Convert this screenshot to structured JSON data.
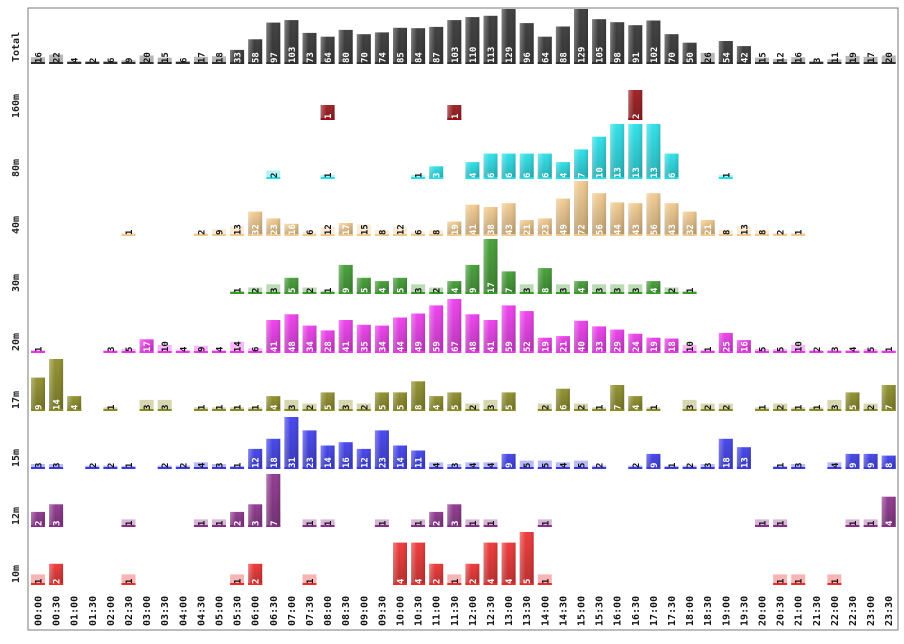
{
  "chart_data": {
    "type": "bar",
    "title": "",
    "xlabel": "",
    "ylabel": "",
    "grid": false,
    "legend": "none",
    "times": [
      "00:00",
      "00:30",
      "01:00",
      "01:30",
      "02:00",
      "02:30",
      "03:00",
      "03:30",
      "04:00",
      "04:30",
      "05:00",
      "05:30",
      "06:00",
      "06:30",
      "07:00",
      "07:30",
      "08:00",
      "08:30",
      "09:00",
      "09:30",
      "10:00",
      "10:30",
      "11:00",
      "11:30",
      "12:00",
      "12:30",
      "13:00",
      "13:30",
      "14:00",
      "14:30",
      "15:00",
      "15:30",
      "16:00",
      "16:30",
      "17:00",
      "17:30",
      "18:00",
      "18:30",
      "19:00",
      "19:30",
      "20:00",
      "20:30",
      "21:00",
      "21:30",
      "22:00",
      "22:30",
      "23:00",
      "23:30"
    ],
    "rows": [
      {
        "name": "Total",
        "color": "#303030",
        "max": 129,
        "values": [
          16,
          22,
          4,
          2,
          6,
          9,
          20,
          15,
          6,
          17,
          18,
          33,
          58,
          97,
          103,
          73,
          64,
          80,
          70,
          74,
          85,
          84,
          87,
          103,
          110,
          113,
          129,
          96,
          64,
          88,
          129,
          105,
          98,
          91,
          102,
          70,
          50,
          26,
          54,
          42,
          15,
          12,
          16,
          3,
          11,
          19,
          17,
          20
        ]
      },
      {
        "name": "160m",
        "color": "#9a0f14",
        "max": 2,
        "values": [
          0,
          0,
          0,
          0,
          0,
          0,
          0,
          0,
          0,
          0,
          0,
          0,
          0,
          0,
          0,
          0,
          1,
          0,
          0,
          0,
          0,
          0,
          0,
          1,
          0,
          0,
          0,
          0,
          0,
          0,
          0,
          0,
          0,
          2,
          0,
          0,
          0,
          0,
          0,
          0,
          0,
          0,
          0,
          0,
          0,
          0,
          0,
          0
        ]
      },
      {
        "name": "80m",
        "color": "#1fe0e8",
        "max": 13,
        "values": [
          0,
          0,
          0,
          0,
          0,
          0,
          0,
          0,
          0,
          0,
          0,
          0,
          0,
          2,
          0,
          0,
          1,
          0,
          0,
          0,
          0,
          1,
          3,
          0,
          4,
          6,
          6,
          6,
          6,
          4,
          7,
          10,
          13,
          13,
          13,
          6,
          0,
          0,
          1,
          0,
          0,
          0,
          0,
          0,
          0,
          0,
          0,
          0
        ]
      },
      {
        "name": "40m",
        "color": "#f2c98a",
        "max": 72,
        "values": [
          0,
          0,
          0,
          0,
          0,
          1,
          0,
          0,
          0,
          2,
          9,
          13,
          32,
          23,
          16,
          6,
          12,
          17,
          15,
          8,
          12,
          6,
          8,
          19,
          41,
          38,
          43,
          21,
          23,
          49,
          72,
          56,
          44,
          43,
          56,
          43,
          32,
          21,
          8,
          13,
          8,
          2,
          1,
          0,
          0,
          0,
          0,
          0
        ]
      },
      {
        "name": "30m",
        "color": "#3a9a2a",
        "max": 17,
        "values": [
          0,
          0,
          0,
          0,
          0,
          0,
          0,
          0,
          0,
          0,
          0,
          1,
          2,
          3,
          5,
          2,
          1,
          9,
          5,
          4,
          5,
          3,
          2,
          4,
          9,
          17,
          7,
          3,
          8,
          3,
          4,
          3,
          3,
          3,
          4,
          2,
          1,
          0,
          0,
          0,
          0,
          0,
          0,
          0,
          0,
          0,
          0,
          0
        ]
      },
      {
        "name": "20m",
        "color": "#ee33ee",
        "max": 67,
        "values": [
          1,
          0,
          0,
          0,
          3,
          5,
          17,
          10,
          4,
          9,
          4,
          14,
          6,
          41,
          48,
          34,
          28,
          41,
          35,
          34,
          44,
          49,
          59,
          67,
          48,
          41,
          59,
          52,
          19,
          21,
          40,
          33,
          29,
          24,
          19,
          18,
          10,
          1,
          25,
          16,
          5,
          5,
          10,
          2,
          3,
          4,
          5,
          1
        ]
      },
      {
        "name": "17m",
        "color": "#8a8a20",
        "max": 14,
        "values": [
          9,
          14,
          4,
          0,
          1,
          0,
          3,
          3,
          0,
          1,
          1,
          1,
          1,
          4,
          3,
          2,
          5,
          3,
          2,
          5,
          5,
          8,
          4,
          5,
          2,
          3,
          5,
          0,
          2,
          6,
          2,
          1,
          7,
          4,
          1,
          0,
          3,
          2,
          2,
          0,
          1,
          2,
          1,
          1,
          3,
          5,
          2,
          7
        ]
      },
      {
        "name": "15m",
        "color": "#3838ee",
        "max": 31,
        "values": [
          3,
          3,
          0,
          2,
          2,
          1,
          0,
          2,
          2,
          4,
          3,
          1,
          12,
          18,
          31,
          23,
          14,
          16,
          12,
          23,
          14,
          11,
          4,
          3,
          4,
          4,
          9,
          5,
          5,
          4,
          5,
          2,
          0,
          2,
          9,
          1,
          2,
          3,
          18,
          13,
          0,
          1,
          3,
          0,
          4,
          9,
          9,
          8
        ]
      },
      {
        "name": "12m",
        "color": "#8a2c8a",
        "max": 7,
        "values": [
          2,
          3,
          0,
          0,
          0,
          1,
          0,
          0,
          0,
          1,
          1,
          2,
          3,
          7,
          0,
          1,
          1,
          0,
          0,
          1,
          0,
          1,
          2,
          3,
          1,
          1,
          0,
          0,
          1,
          0,
          0,
          0,
          0,
          0,
          0,
          0,
          0,
          0,
          0,
          0,
          1,
          1,
          0,
          0,
          0,
          1,
          1,
          4
        ]
      },
      {
        "name": "10m",
        "color": "#ee2a2a",
        "max": 5,
        "values": [
          1,
          2,
          0,
          0,
          0,
          1,
          0,
          0,
          0,
          0,
          0,
          1,
          2,
          0,
          0,
          1,
          0,
          0,
          0,
          0,
          4,
          4,
          2,
          1,
          2,
          4,
          4,
          5,
          1,
          0,
          0,
          0,
          0,
          0,
          0,
          0,
          0,
          0,
          0,
          0,
          0,
          1,
          1,
          0,
          1,
          0,
          0,
          0
        ]
      }
    ]
  }
}
